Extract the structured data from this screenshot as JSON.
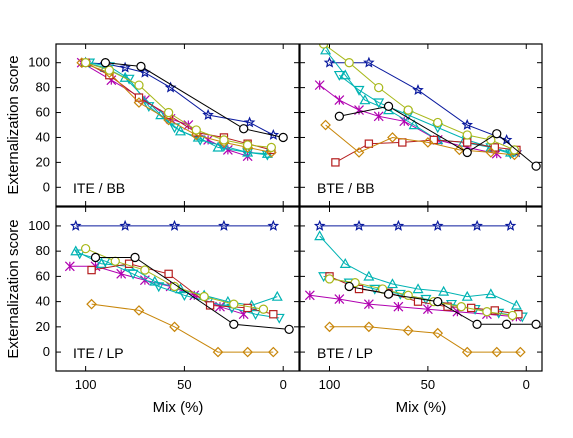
{
  "figure": {
    "ylabel": "Externalization score",
    "xlabel": "Mix (%)"
  },
  "colors": {
    "navy": "#0a1a9e",
    "purple": "#b000b0",
    "teal": "#00b3b3",
    "red": "#b51e1e",
    "gold": "#c8860a",
    "olive": "#a8b81a",
    "black": "#000000"
  },
  "chart_data": [
    {
      "type": "line",
      "title": "ITE / BB",
      "xlim": [
        115,
        -8
      ],
      "ylim": [
        -15,
        115
      ],
      "xticks": [
        100,
        50,
        0
      ],
      "yticks": [
        0,
        20,
        40,
        60,
        80,
        100
      ],
      "series": [
        {
          "color": "navy",
          "marker": "star",
          "x": [
            100,
            90,
            80,
            70,
            57,
            38,
            17,
            5
          ],
          "y": [
            100,
            99,
            96,
            92,
            80,
            58,
            52,
            42
          ]
        },
        {
          "color": "purple",
          "marker": "x",
          "x": [
            102,
            87,
            70,
            57,
            48,
            38,
            28,
            18
          ],
          "y": [
            100,
            86,
            70,
            55,
            50,
            38,
            30,
            25
          ]
        },
        {
          "color": "teal",
          "marker": "triangle-up",
          "x": [
            100,
            90,
            80,
            62,
            52,
            43,
            33,
            18,
            8
          ],
          "y": [
            100,
            96,
            88,
            58,
            45,
            40,
            32,
            28,
            27
          ]
        },
        {
          "color": "teal",
          "marker": "triangle-down",
          "x": [
            98,
            88,
            78,
            68,
            55,
            42,
            30,
            18,
            8
          ],
          "y": [
            100,
            97,
            87,
            65,
            48,
            38,
            33,
            28,
            26
          ]
        },
        {
          "color": "red",
          "marker": "square",
          "x": [
            100,
            88,
            73,
            58,
            44,
            30,
            18,
            6
          ],
          "y": [
            100,
            90,
            72,
            58,
            44,
            40,
            35,
            30
          ]
        },
        {
          "color": "gold",
          "marker": "diamond",
          "x": [
            102,
            88,
            73,
            58,
            44,
            30,
            18,
            6
          ],
          "y": [
            100,
            92,
            68,
            54,
            42,
            36,
            32,
            28
          ]
        },
        {
          "color": "olive",
          "marker": "circle",
          "x": [
            100,
            88,
            73,
            58,
            44,
            30,
            18,
            6
          ],
          "y": [
            100,
            94,
            82,
            60,
            46,
            38,
            34,
            32
          ]
        },
        {
          "color": "black",
          "marker": "circle",
          "x": [
            90,
            72,
            20,
            0
          ],
          "y": [
            100,
            97,
            47,
            40
          ]
        }
      ]
    },
    {
      "type": "line",
      "title": "BTE / BB",
      "xlim": [
        115,
        -8
      ],
      "ylim": [
        -15,
        115
      ],
      "xticks": [
        100,
        50,
        0
      ],
      "yticks": [
        0,
        20,
        40,
        60,
        80,
        100
      ],
      "series": [
        {
          "color": "navy",
          "marker": "star",
          "x": [
            100,
            80,
            55,
            30,
            10,
            5
          ],
          "y": [
            100,
            100,
            78,
            50,
            38,
            28
          ]
        },
        {
          "color": "purple",
          "marker": "x",
          "x": [
            105,
            95,
            85,
            75,
            62,
            45,
            30,
            15
          ],
          "y": [
            82,
            70,
            62,
            57,
            53,
            38,
            32,
            27
          ]
        },
        {
          "color": "teal",
          "marker": "triangle-up",
          "x": [
            102,
            92,
            82,
            70,
            57,
            45,
            32,
            18,
            8
          ],
          "y": [
            110,
            90,
            70,
            62,
            50,
            38,
            36,
            32,
            28
          ]
        },
        {
          "color": "teal",
          "marker": "triangle-down",
          "x": [
            95,
            85,
            75,
            60,
            45,
            30,
            18,
            8
          ],
          "y": [
            90,
            78,
            68,
            58,
            48,
            38,
            32,
            27
          ]
        },
        {
          "color": "red",
          "marker": "square",
          "x": [
            97,
            80,
            63,
            47,
            30,
            16,
            5
          ],
          "y": [
            20,
            35,
            36,
            38,
            36,
            32,
            30
          ]
        },
        {
          "color": "gold",
          "marker": "diamond",
          "x": [
            102,
            85,
            68,
            50,
            34,
            18,
            6
          ],
          "y": [
            50,
            28,
            40,
            36,
            30,
            28,
            26
          ]
        },
        {
          "color": "olive",
          "marker": "circle",
          "x": [
            103,
            90,
            75,
            60,
            45,
            30,
            18,
            6
          ],
          "y": [
            115,
            100,
            80,
            62,
            52,
            42,
            38,
            30
          ]
        },
        {
          "color": "black",
          "marker": "circle",
          "x": [
            95,
            70,
            30,
            15,
            -5
          ],
          "y": [
            57,
            65,
            28,
            43,
            17
          ]
        }
      ]
    },
    {
      "type": "line",
      "title": "ITE / LP",
      "xlim": [
        115,
        -8
      ],
      "ylim": [
        -15,
        115
      ],
      "xticks": [
        100,
        50,
        0
      ],
      "yticks": [
        0,
        20,
        40,
        60,
        80,
        100
      ],
      "series": [
        {
          "color": "navy",
          "marker": "star",
          "x": [
            105,
            80,
            55,
            30,
            5
          ],
          "y": [
            100,
            100,
            100,
            100,
            100
          ]
        },
        {
          "color": "purple",
          "marker": "x",
          "x": [
            108,
            95,
            82,
            70,
            57,
            45,
            32,
            20
          ],
          "y": [
            68,
            68,
            62,
            57,
            52,
            45,
            36,
            30
          ]
        },
        {
          "color": "teal",
          "marker": "triangle-up",
          "x": [
            105,
            92,
            78,
            65,
            52,
            40,
            28,
            16,
            3
          ],
          "y": [
            80,
            70,
            68,
            56,
            50,
            45,
            40,
            37,
            44
          ]
        },
        {
          "color": "teal",
          "marker": "triangle-down",
          "x": [
            103,
            90,
            76,
            63,
            50,
            38,
            26,
            14,
            2
          ],
          "y": [
            78,
            72,
            62,
            52,
            45,
            40,
            35,
            30,
            27
          ]
        },
        {
          "color": "red",
          "marker": "square",
          "x": [
            97,
            78,
            58,
            37,
            18,
            5
          ],
          "y": [
            65,
            70,
            62,
            37,
            35,
            30
          ]
        },
        {
          "color": "gold",
          "marker": "diamond",
          "x": [
            97,
            73,
            55,
            33,
            18,
            5
          ],
          "y": [
            38,
            33,
            20,
            0,
            0,
            0
          ]
        },
        {
          "color": "olive",
          "marker": "circle",
          "x": [
            100,
            85,
            70,
            55,
            40,
            25,
            10
          ],
          "y": [
            82,
            72,
            65,
            52,
            44,
            38,
            34
          ]
        },
        {
          "color": "black",
          "marker": "circle",
          "x": [
            95,
            75,
            25,
            -3
          ],
          "y": [
            75,
            75,
            22,
            18
          ]
        }
      ]
    },
    {
      "type": "line",
      "title": "BTE / LP",
      "xlim": [
        115,
        -8
      ],
      "ylim": [
        -15,
        115
      ],
      "xticks": [
        100,
        50,
        0
      ],
      "yticks": [
        0,
        20,
        40,
        60,
        80,
        100
      ],
      "series": [
        {
          "color": "navy",
          "marker": "star",
          "x": [
            105,
            85,
            65,
            45,
            25,
            8
          ],
          "y": [
            100,
            100,
            100,
            100,
            100,
            100
          ]
        },
        {
          "color": "purple",
          "marker": "x",
          "x": [
            110,
            95,
            80,
            65,
            50,
            35,
            20,
            5
          ],
          "y": [
            45,
            42,
            38,
            36,
            34,
            32,
            30,
            28
          ]
        },
        {
          "color": "teal",
          "marker": "triangle-up",
          "x": [
            105,
            92,
            80,
            68,
            55,
            42,
            30,
            18,
            5
          ],
          "y": [
            92,
            70,
            60,
            54,
            50,
            48,
            44,
            46,
            37
          ]
        },
        {
          "color": "teal",
          "marker": "triangle-down",
          "x": [
            103,
            90,
            77,
            64,
            51,
            38,
            26,
            14,
            2
          ],
          "y": [
            60,
            55,
            50,
            46,
            42,
            38,
            34,
            31,
            28
          ]
        },
        {
          "color": "red",
          "marker": "square",
          "x": [
            100,
            85,
            70,
            55,
            40,
            28,
            16,
            4
          ],
          "y": [
            60,
            50,
            47,
            40,
            36,
            35,
            33,
            30
          ]
        },
        {
          "color": "gold",
          "marker": "diamond",
          "x": [
            100,
            80,
            60,
            45,
            30,
            15,
            3
          ],
          "y": [
            20,
            20,
            17,
            15,
            0,
            0,
            0
          ]
        },
        {
          "color": "olive",
          "marker": "circle",
          "x": [
            100,
            87,
            73,
            60,
            47,
            33,
            20,
            7
          ],
          "y": [
            58,
            55,
            50,
            45,
            40,
            36,
            32,
            29
          ]
        },
        {
          "color": "black",
          "marker": "circle",
          "x": [
            90,
            70,
            45,
            25,
            10,
            -5
          ],
          "y": [
            52,
            46,
            40,
            22,
            22,
            22
          ]
        }
      ]
    }
  ]
}
